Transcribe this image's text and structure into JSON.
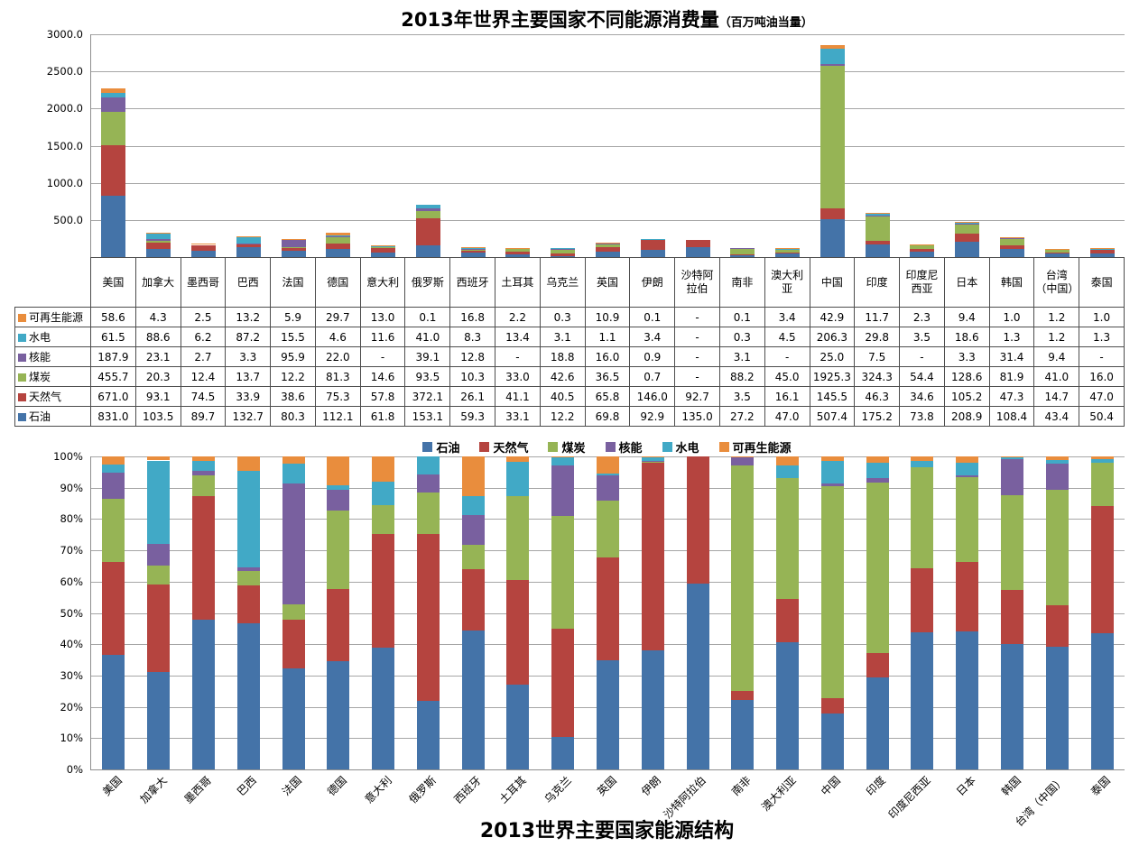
{
  "titles": {
    "top_main": "2013年世界主要国家不同能源消费量",
    "top_unit": "（百万吨油当量）",
    "bottom": "2013世界主要国家能源结构"
  },
  "chart_data": [
    {
      "type": "bar",
      "stacking": "absolute",
      "title": "2013年世界主要国家不同能源消费量（百万吨油当量）",
      "ylim": [
        0,
        3000
      ],
      "ytick_labels": [
        "-",
        "500.0",
        "1000.0",
        "1500.0",
        "2000.0",
        "2500.0",
        "3000.0"
      ],
      "grid": true,
      "legend_position": "table-row-headers",
      "missing_display": "-",
      "table_row_order_top_to_bottom": [
        "可再生能源",
        "水电",
        "核能",
        "煤炭",
        "天然气",
        "石油"
      ],
      "categories": [
        "美国",
        "加拿大",
        "墨西哥",
        "巴西",
        "法国",
        "德国",
        "意大利",
        "俄罗斯",
        "西班牙",
        "土耳其",
        "乌克兰",
        "英国",
        "伊朗",
        "沙特阿拉伯",
        "南非",
        "澳大利亚",
        "中国",
        "印度",
        "印度尼西亚",
        "日本",
        "韩国",
        "台湾（中国）",
        "泰国"
      ],
      "series": [
        {
          "name": "石油",
          "color": "#4473A8",
          "values": [
            831.0,
            103.5,
            89.7,
            132.7,
            80.3,
            112.1,
            61.8,
            153.1,
            59.3,
            33.1,
            12.2,
            69.8,
            92.9,
            135.0,
            27.2,
            47.0,
            507.4,
            175.2,
            73.8,
            208.9,
            108.4,
            43.4,
            50.4
          ]
        },
        {
          "name": "天然气",
          "color": "#B5443F",
          "values": [
            671.0,
            93.1,
            74.5,
            33.9,
            38.6,
            75.3,
            57.8,
            372.1,
            26.1,
            41.1,
            40.5,
            65.8,
            146.0,
            92.7,
            3.5,
            16.1,
            145.5,
            46.3,
            34.6,
            105.2,
            47.3,
            14.7,
            47.0
          ]
        },
        {
          "name": "煤炭",
          "color": "#96B455",
          "values": [
            455.7,
            20.3,
            12.4,
            13.7,
            12.2,
            81.3,
            14.6,
            93.5,
            10.3,
            33.0,
            42.6,
            36.5,
            0.7,
            null,
            88.2,
            45.0,
            1925.3,
            324.3,
            54.4,
            128.6,
            81.9,
            41.0,
            16.0
          ]
        },
        {
          "name": "核能",
          "color": "#79609F",
          "values": [
            187.9,
            23.1,
            2.7,
            3.3,
            95.9,
            22.0,
            null,
            39.1,
            12.8,
            null,
            18.8,
            16.0,
            0.9,
            null,
            3.1,
            null,
            25.0,
            7.5,
            null,
            3.3,
            31.4,
            9.4,
            null
          ]
        },
        {
          "name": "水电",
          "color": "#41A9C6",
          "values": [
            61.5,
            88.6,
            6.2,
            87.2,
            15.5,
            4.6,
            11.6,
            41.0,
            8.3,
            13.4,
            3.1,
            1.1,
            3.4,
            null,
            0.3,
            4.5,
            206.3,
            29.8,
            3.5,
            18.6,
            1.3,
            1.2,
            1.3
          ]
        },
        {
          "name": "可再生能源",
          "color": "#E98D3D",
          "values": [
            58.6,
            4.3,
            2.5,
            13.2,
            5.9,
            29.7,
            13.0,
            0.1,
            16.8,
            2.2,
            0.3,
            10.9,
            0.1,
            null,
            0.1,
            3.4,
            42.9,
            11.7,
            2.3,
            9.4,
            1.0,
            1.2,
            1.0
          ]
        }
      ]
    },
    {
      "type": "bar",
      "stacking": "percent",
      "title": "2013世界主要国家能源结构",
      "ylim": [
        0,
        100
      ],
      "ytick_labels": [
        "0%",
        "10%",
        "20%",
        "30%",
        "40%",
        "50%",
        "60%",
        "70%",
        "80%",
        "90%",
        "100%"
      ],
      "grid": true,
      "legend_position": "top-center",
      "categories": [
        "美国",
        "加拿大",
        "墨西哥",
        "巴西",
        "法国",
        "德国",
        "意大利",
        "俄罗斯",
        "西班牙",
        "土耳其",
        "乌克兰",
        "英国",
        "伊朗",
        "沙特阿拉伯",
        "南非",
        "澳大利亚",
        "中国",
        "印度",
        "印度尼西亚",
        "日本",
        "韩国",
        "台湾（中国）",
        "泰国"
      ],
      "series": [
        {
          "name": "石油",
          "color": "#4473A8",
          "values": [
            831.0,
            103.5,
            89.7,
            132.7,
            80.3,
            112.1,
            61.8,
            153.1,
            59.3,
            33.1,
            12.2,
            69.8,
            92.9,
            135.0,
            27.2,
            47.0,
            507.4,
            175.2,
            73.8,
            208.9,
            108.4,
            43.4,
            50.4
          ]
        },
        {
          "name": "天然气",
          "color": "#B5443F",
          "values": [
            671.0,
            93.1,
            74.5,
            33.9,
            38.6,
            75.3,
            57.8,
            372.1,
            26.1,
            41.1,
            40.5,
            65.8,
            146.0,
            92.7,
            3.5,
            16.1,
            145.5,
            46.3,
            34.6,
            105.2,
            47.3,
            14.7,
            47.0
          ]
        },
        {
          "name": "煤炭",
          "color": "#96B455",
          "values": [
            455.7,
            20.3,
            12.4,
            13.7,
            12.2,
            81.3,
            14.6,
            93.5,
            10.3,
            33.0,
            42.6,
            36.5,
            0.7,
            null,
            88.2,
            45.0,
            1925.3,
            324.3,
            54.4,
            128.6,
            81.9,
            41.0,
            16.0
          ]
        },
        {
          "name": "核能",
          "color": "#79609F",
          "values": [
            187.9,
            23.1,
            2.7,
            3.3,
            95.9,
            22.0,
            null,
            39.1,
            12.8,
            null,
            18.8,
            16.0,
            0.9,
            null,
            3.1,
            null,
            25.0,
            7.5,
            null,
            3.3,
            31.4,
            9.4,
            null
          ]
        },
        {
          "name": "水电",
          "color": "#41A9C6",
          "values": [
            61.5,
            88.6,
            6.2,
            87.2,
            15.5,
            4.6,
            11.6,
            41.0,
            8.3,
            13.4,
            3.1,
            1.1,
            3.4,
            null,
            0.3,
            4.5,
            206.3,
            29.8,
            3.5,
            18.6,
            1.3,
            1.2,
            1.3
          ]
        },
        {
          "name": "可再生能源",
          "color": "#E98D3D",
          "values": [
            58.6,
            4.3,
            2.5,
            13.2,
            5.9,
            29.7,
            13.0,
            0.1,
            16.8,
            2.2,
            0.3,
            10.9,
            0.1,
            null,
            0.1,
            3.4,
            42.9,
            11.7,
            2.3,
            9.4,
            1.0,
            1.2,
            1.0
          ]
        }
      ]
    }
  ]
}
